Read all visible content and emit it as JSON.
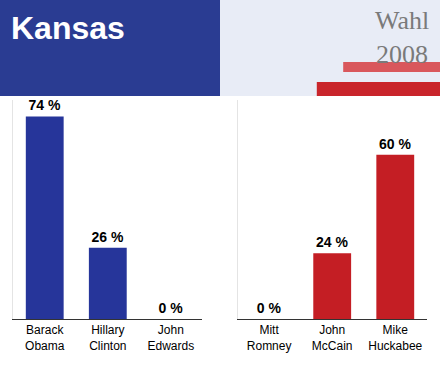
{
  "header": {
    "title": "Kansas",
    "subtitle": "Wahl 2008"
  },
  "chart_data": [
    {
      "type": "bar",
      "categories": [
        "Barack Obama",
        "Hillary Clinton",
        "John Edwards"
      ],
      "values": [
        74,
        26,
        0
      ],
      "value_labels": [
        "74 %",
        "26 %",
        "0 %"
      ],
      "colors": [
        "#26359a",
        "#26359a",
        "#26359a"
      ],
      "ylim": [
        0,
        80
      ],
      "data_labels": true,
      "tick_labels": "x",
      "grid": false
    },
    {
      "type": "bar",
      "categories": [
        "Mitt Romney",
        "John McCain",
        "Mike Huckabee"
      ],
      "values": [
        0,
        24,
        60
      ],
      "value_labels": [
        "0 %",
        "24 %",
        "60 %"
      ],
      "colors": [
        "#c41e24",
        "#c41e24",
        "#c41e24"
      ],
      "ylim": [
        0,
        80
      ],
      "data_labels": true,
      "tick_labels": "x",
      "grid": false
    }
  ]
}
